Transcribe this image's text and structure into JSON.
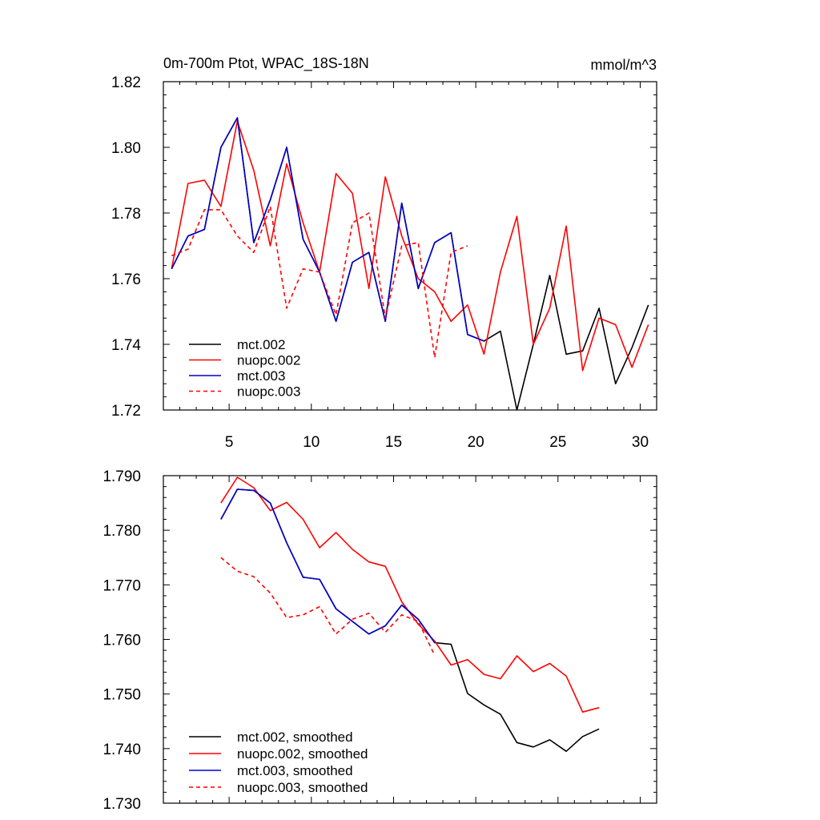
{
  "chart_data": [
    {
      "type": "line",
      "title": "0m-700m Ptot, WPAC_18S-18N",
      "units": "mmol/m^3",
      "xlim": [
        1,
        31
      ],
      "ylim": [
        1.72,
        1.82
      ],
      "xticks": [
        5,
        10,
        15,
        20,
        25,
        30
      ],
      "yticks": [
        1.72,
        1.74,
        1.76,
        1.78,
        1.8,
        1.82
      ],
      "ytick_labels": [
        "1.72",
        "1.74",
        "1.76",
        "1.78",
        "1.80",
        "1.82"
      ],
      "legend_position": "bottom-left",
      "series": [
        {
          "name": "mct.002",
          "color": "#000000",
          "dash": false,
          "x": [
            1.5,
            2.5,
            3.5,
            4.5,
            5.5,
            6.5,
            7.5,
            8.5,
            9.5,
            10.5,
            11.5,
            12.5,
            13.5,
            14.5,
            15.5,
            16.5,
            17.5,
            18.5,
            19.5,
            20.5,
            21.5,
            22.5,
            23.5,
            24.5,
            25.5,
            26.5,
            27.5,
            28.5,
            29.5,
            30.5
          ],
          "values": [
            1.763,
            1.773,
            1.775,
            1.8,
            1.809,
            1.771,
            1.784,
            1.8,
            1.772,
            1.762,
            1.747,
            1.765,
            1.768,
            1.747,
            1.783,
            1.757,
            1.771,
            1.774,
            1.743,
            1.741,
            1.744,
            1.72,
            1.74,
            1.761,
            1.737,
            1.738,
            1.751,
            1.728,
            1.739,
            1.752
          ]
        },
        {
          "name": "nuopc.002",
          "color": "#ff0000",
          "dash": false,
          "x": [
            1.5,
            2.5,
            3.5,
            4.5,
            5.5,
            6.5,
            7.5,
            8.5,
            9.5,
            10.5,
            11.5,
            12.5,
            13.5,
            14.5,
            15.5,
            16.5,
            17.5,
            18.5,
            19.5,
            20.5,
            21.5,
            22.5,
            23.5,
            24.5,
            25.5,
            26.5,
            27.5,
            28.5,
            29.5,
            30.5
          ],
          "values": [
            1.763,
            1.789,
            1.79,
            1.782,
            1.808,
            1.793,
            1.77,
            1.795,
            1.777,
            1.762,
            1.792,
            1.786,
            1.757,
            1.791,
            1.773,
            1.76,
            1.756,
            1.747,
            1.752,
            1.737,
            1.762,
            1.779,
            1.74,
            1.751,
            1.776,
            1.732,
            1.748,
            1.746,
            1.733,
            1.746
          ]
        },
        {
          "name": "mct.003",
          "color": "#0000cc",
          "dash": false,
          "x": [
            1.5,
            2.5,
            3.5,
            4.5,
            5.5,
            6.5,
            7.5,
            8.5,
            9.5,
            10.5,
            11.5,
            12.5,
            13.5,
            14.5,
            15.5,
            16.5,
            17.5,
            18.5,
            19.5,
            20.5
          ],
          "values": [
            1.763,
            1.773,
            1.775,
            1.8,
            1.809,
            1.771,
            1.784,
            1.8,
            1.772,
            1.762,
            1.747,
            1.765,
            1.768,
            1.747,
            1.783,
            1.757,
            1.771,
            1.774,
            1.743,
            1.741
          ]
        },
        {
          "name": "nuopc.003",
          "color": "#ff0000",
          "dash": true,
          "x": [
            1.5,
            2.5,
            3.5,
            4.5,
            5.5,
            6.5,
            7.5,
            8.5,
            9.5,
            10.5,
            11.5,
            12.5,
            13.5,
            14.5,
            15.5,
            16.5,
            17.5,
            18.5,
            19.5
          ],
          "values": [
            1.767,
            1.769,
            1.781,
            1.781,
            1.773,
            1.768,
            1.782,
            1.751,
            1.763,
            1.762,
            1.749,
            1.777,
            1.78,
            1.748,
            1.77,
            1.771,
            1.736,
            1.768,
            1.77
          ]
        }
      ]
    },
    {
      "type": "line",
      "title": "",
      "xlim": [
        1,
        31
      ],
      "ylim": [
        1.73,
        1.79
      ],
      "xticks": [
        5,
        10,
        15,
        20,
        25,
        30
      ],
      "yticks": [
        1.73,
        1.74,
        1.75,
        1.76,
        1.77,
        1.78,
        1.79
      ],
      "ytick_labels": [
        "1.730",
        "1.740",
        "1.750",
        "1.760",
        "1.770",
        "1.780",
        "1.790"
      ],
      "legend_position": "bottom-left",
      "series": [
        {
          "name": "mct.002, smoothed",
          "color": "#000000",
          "dash": false,
          "x": [
            4.5,
            5.5,
            6.5,
            7.5,
            8.5,
            9.5,
            10.5,
            11.5,
            12.5,
            13.5,
            14.5,
            15.5,
            16.5,
            17.5,
            18.5,
            19.5,
            20.5,
            21.5,
            22.5,
            23.5,
            24.5,
            25.5,
            26.5,
            27.5
          ],
          "values": [
            1.782,
            1.7875,
            1.7873,
            1.785,
            1.7777,
            1.7714,
            1.771,
            1.7656,
            1.7633,
            1.761,
            1.7625,
            1.7663,
            1.7637,
            1.7594,
            1.7591,
            1.7501,
            1.748,
            1.7463,
            1.7411,
            1.7403,
            1.7416,
            1.7395,
            1.7422,
            1.7436
          ]
        },
        {
          "name": "nuopc.002, smoothed",
          "color": "#ff0000",
          "dash": false,
          "x": [
            4.5,
            5.5,
            6.5,
            7.5,
            8.5,
            9.5,
            10.5,
            11.5,
            12.5,
            13.5,
            14.5,
            15.5,
            16.5,
            17.5,
            18.5,
            19.5,
            20.5,
            21.5,
            22.5,
            23.5,
            24.5,
            25.5,
            26.5,
            27.5
          ],
          "values": [
            1.785,
            1.7897,
            1.7878,
            1.7836,
            1.7851,
            1.782,
            1.7768,
            1.7796,
            1.7765,
            1.7742,
            1.7734,
            1.7669,
            1.7628,
            1.7597,
            1.7553,
            1.7563,
            1.7536,
            1.7528,
            1.757,
            1.7541,
            1.7556,
            1.7533,
            1.7467,
            1.7475
          ]
        },
        {
          "name": "mct.003, smoothed",
          "color": "#0000cc",
          "dash": false,
          "x": [
            4.5,
            5.5,
            6.5,
            7.5,
            8.5,
            9.5,
            10.5,
            11.5,
            12.5,
            13.5,
            14.5,
            15.5,
            16.5,
            17.5
          ],
          "values": [
            1.782,
            1.7875,
            1.7873,
            1.785,
            1.7777,
            1.7714,
            1.771,
            1.7656,
            1.7633,
            1.761,
            1.7625,
            1.7663,
            1.7637,
            1.7594
          ]
        },
        {
          "name": "nuopc.003, smoothed",
          "color": "#ff0000",
          "dash": true,
          "x": [
            4.5,
            5.5,
            6.5,
            7.5,
            8.5,
            9.5,
            10.5,
            11.5,
            12.5,
            13.5,
            14.5,
            15.5,
            16.5,
            17.5
          ],
          "values": [
            1.775,
            1.7725,
            1.7715,
            1.7685,
            1.764,
            1.7645,
            1.766,
            1.761,
            1.7637,
            1.7648,
            1.7613,
            1.7645,
            1.7633,
            1.7571
          ]
        }
      ]
    }
  ]
}
